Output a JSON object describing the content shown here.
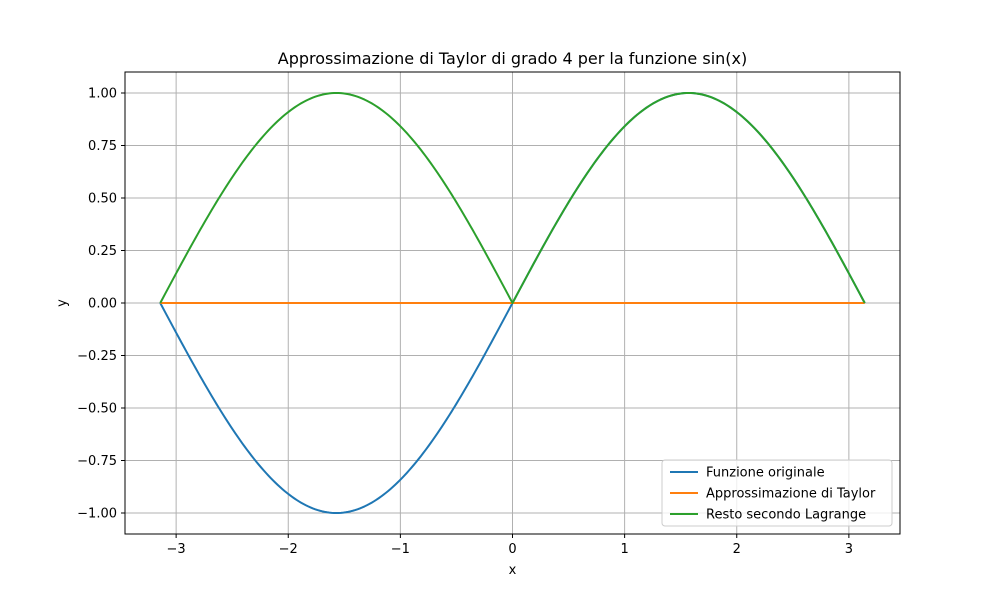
{
  "chart_data": {
    "type": "line",
    "title": "Approssimazione di Taylor di grado 4 per la funzione sin(x)",
    "xlabel": "x",
    "ylabel": "y",
    "xlim": [
      -3.456,
      3.456
    ],
    "ylim": [
      -1.1,
      1.1
    ],
    "xticks": [
      -3,
      -2,
      -1,
      0,
      1,
      2,
      3
    ],
    "xtick_labels": [
      "−3",
      "−2",
      "−1",
      "0",
      "1",
      "2",
      "3"
    ],
    "yticks": [
      -1.0,
      -0.75,
      -0.5,
      -0.25,
      0.0,
      0.25,
      0.5,
      0.75,
      1.0
    ],
    "ytick_labels": [
      "−1.00",
      "−0.75",
      "−0.50",
      "−0.25",
      "0.00",
      "0.25",
      "0.50",
      "0.75",
      "1.00"
    ],
    "grid": true,
    "legend_position": "lower-right",
    "x_range": [
      -3.1416,
      3.1416
    ],
    "series": [
      {
        "name": "Funzione originale",
        "color": "#1f77b4",
        "formula": "sin(x)"
      },
      {
        "name": "Approssimazione di Taylor",
        "color": "#ff7f0e",
        "formula": "0"
      },
      {
        "name": "Resto secondo Lagrange",
        "color": "#2ca02c",
        "formula": "|sin(x)|"
      }
    ]
  }
}
